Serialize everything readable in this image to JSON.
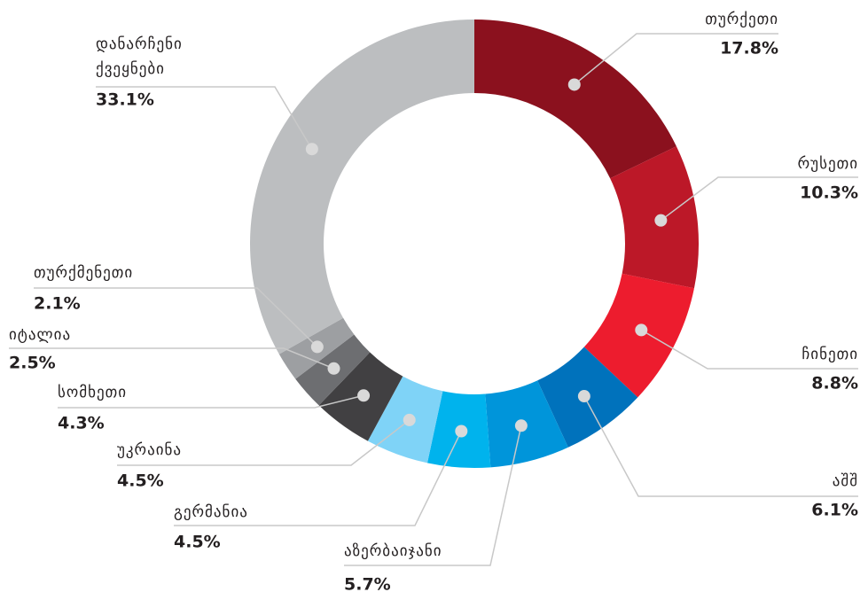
{
  "chart_data": {
    "type": "donut",
    "categories": [
      "თურქეთი",
      "რუსეთი",
      "ჩინეთი",
      "აშშ",
      "აზერბაიჯანი",
      "გერმანია",
      "უკრაინა",
      "სომხეთი",
      "იტალია",
      "თურქმენეთი",
      "დანარჩენი ქვეყნები"
    ],
    "values": [
      17.8,
      10.3,
      8.8,
      6.1,
      5.7,
      4.5,
      4.5,
      4.3,
      2.5,
      2.1,
      33.1
    ],
    "value_labels": [
      "17.8%",
      "10.3%",
      "8.8%",
      "6.1%",
      "5.7%",
      "4.5%",
      "4.5%",
      "4.3%",
      "2.5%",
      "2.1%",
      "33.1%"
    ],
    "colors": [
      "#8b111e",
      "#bc1828",
      "#ed1c2e",
      "#0072bc",
      "#0095da",
      "#00b3ed",
      "#7fd3f7",
      "#414042",
      "#6d6e71",
      "#9d9fa2",
      "#bcbec0"
    ]
  }
}
